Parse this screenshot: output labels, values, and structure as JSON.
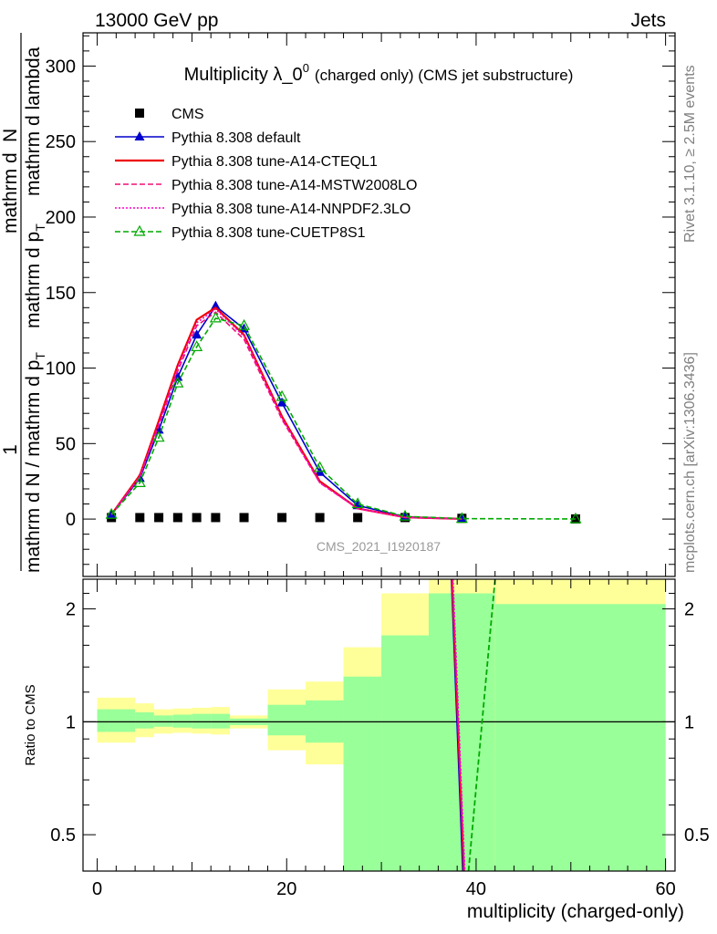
{
  "header": {
    "left": "13000 GeV pp",
    "right": "Jets"
  },
  "side_texts": {
    "rivet": "Rivet 3.1.10, ≥ 2.5M events",
    "mcplots": "mcplots.cern.ch [arXiv:1306.3436]"
  },
  "chart_data": {
    "type": "line",
    "title_main": "Multiplicity λ_0",
    "title_sup": "0",
    "title_note": "(charged only) (CMS jet substructure)",
    "watermark": "CMS_2021_I1920187",
    "xlabel": "multiplicity (charged-only)",
    "ylabel_parts": {
      "one": "1",
      "denominator": "mathrm d N / mathrm d p",
      "denominator_sub": "T",
      "numerator_a": "mathrm d",
      "numerator_b": "N",
      "numerator_c": "mathrm d p",
      "numerator_c_sub": "T",
      "numerator_d": "mathrm d lambda"
    },
    "xlim": [
      -1.5,
      61
    ],
    "ylim": [
      -38,
      322
    ],
    "x_ticks": [
      0,
      20,
      40,
      60
    ],
    "y_ticks": [
      0,
      50,
      100,
      150,
      200,
      250,
      300
    ],
    "legend_position": "top-left",
    "series": [
      {
        "name": "CMS",
        "color": "#000000",
        "style": "marker-square",
        "x": [
          1.5,
          4.5,
          6.5,
          8.5,
          10.5,
          12.5,
          15.5,
          19.5,
          23.5,
          27.5,
          32.5,
          38.5,
          50.5
        ],
        "y": [
          1,
          1,
          1,
          1,
          1,
          1,
          1,
          1,
          1,
          1,
          1,
          0.5,
          0.1
        ]
      },
      {
        "name": "Pythia 8.308 default",
        "color": "#0000cc",
        "style": "solid-triangle",
        "x": [
          1.5,
          4.5,
          6.5,
          8.5,
          10.5,
          12.5,
          15.5,
          19.5,
          23.5,
          27.5,
          32.5,
          38.5
        ],
        "y": [
          3,
          27,
          59,
          94,
          122,
          141,
          126,
          77,
          31,
          9,
          1.5,
          0.2
        ]
      },
      {
        "name": "Pythia 8.308 tune-A14-CTEQL1",
        "color": "#ee0000",
        "style": "solid",
        "x": [
          1.5,
          4.5,
          6.5,
          8.5,
          10.5,
          12.5,
          15.5,
          19.5,
          23.5,
          27.5,
          32.5,
          38.5
        ],
        "y": [
          3,
          29,
          65,
          102,
          132,
          140,
          122,
          68,
          25,
          7,
          1.2,
          0.1
        ]
      },
      {
        "name": "Pythia 8.308 tune-A14-MSTW2008LO",
        "color": "#ee1177",
        "style": "dashed",
        "x": [
          1.5,
          4.5,
          6.5,
          8.5,
          10.5,
          12.5,
          15.5,
          19.5,
          23.5,
          27.5,
          32.5,
          38.5
        ],
        "y": [
          3,
          28,
          62,
          98,
          128,
          137,
          119,
          66,
          24,
          7,
          1.1,
          0.1
        ]
      },
      {
        "name": "Pythia 8.308 tune-A14-NNPDF2.3LO",
        "color": "#ff00cc",
        "style": "dotted",
        "x": [
          1.5,
          4.5,
          6.5,
          8.5,
          10.5,
          12.5,
          15.5,
          19.5,
          23.5,
          27.5,
          32.5,
          38.5
        ],
        "y": [
          3,
          28,
          63,
          100,
          130,
          139,
          121,
          67,
          24,
          7,
          1.1,
          0.1
        ]
      },
      {
        "name": "Pythia 8.308 tune-CUETP8S1",
        "color": "#00aa00",
        "style": "dashed-open-triangle",
        "x": [
          1.5,
          4.5,
          6.5,
          8.5,
          10.5,
          12.5,
          15.5,
          19.5,
          23.5,
          27.5,
          32.5,
          38.5,
          50.5
        ],
        "y": [
          3,
          24,
          54,
          90,
          114,
          133,
          128,
          81,
          34,
          10,
          1.8,
          0.3,
          0.05
        ]
      }
    ],
    "ratio": {
      "ylabel": "Ratio to CMS",
      "ylim": [
        0.4,
        2.4
      ],
      "y_ticks": [
        0.5,
        1,
        2
      ],
      "reference": 1,
      "band_colors": {
        "inner": "#99ff99",
        "outer": "#ffff99"
      },
      "bins": [
        {
          "x0": 0,
          "x1": 4,
          "inner": [
            0.94,
            1.08
          ],
          "outer": [
            0.88,
            1.16
          ]
        },
        {
          "x0": 4,
          "x1": 6,
          "inner": [
            0.96,
            1.06
          ],
          "outer": [
            0.91,
            1.12
          ]
        },
        {
          "x0": 6,
          "x1": 8,
          "inner": [
            0.97,
            1.04
          ],
          "outer": [
            0.93,
            1.08
          ]
        },
        {
          "x0": 8,
          "x1": 10,
          "inner": [
            0.965,
            1.045
          ],
          "outer": [
            0.935,
            1.085
          ]
        },
        {
          "x0": 10,
          "x1": 12,
          "inner": [
            0.96,
            1.05
          ],
          "outer": [
            0.93,
            1.09
          ]
        },
        {
          "x0": 12,
          "x1": 14,
          "inner": [
            0.96,
            1.05
          ],
          "outer": [
            0.925,
            1.095
          ]
        },
        {
          "x0": 14,
          "x1": 18,
          "inner": [
            0.98,
            1.02
          ],
          "outer": [
            0.96,
            1.04
          ]
        },
        {
          "x0": 18,
          "x1": 22,
          "inner": [
            0.92,
            1.11
          ],
          "outer": [
            0.84,
            1.22
          ]
        },
        {
          "x0": 22,
          "x1": 26,
          "inner": [
            0.88,
            1.14
          ],
          "outer": [
            0.77,
            1.28
          ]
        },
        {
          "x0": 26,
          "x1": 30,
          "inner": [
            0.4,
            1.32
          ],
          "outer": [
            0.47,
            1.58
          ]
        },
        {
          "x0": 30,
          "x1": 35,
          "inner": [
            0.4,
            1.7
          ],
          "outer": [
            0.4,
            2.2
          ]
        },
        {
          "x0": 35,
          "x1": 42,
          "inner": [
            0.4,
            2.2
          ],
          "outer": [
            0.4,
            2.4
          ]
        },
        {
          "x0": 42,
          "x1": 60,
          "inner": [
            0.4,
            2.06
          ],
          "outer": [
            0.4,
            2.4
          ]
        }
      ],
      "mc_lines": [
        {
          "color": "#0000cc",
          "style": "solid",
          "x": [
            37.4,
            38.6
          ],
          "y": [
            2.4,
            0.4
          ]
        },
        {
          "color": "#ee0000",
          "style": "solid",
          "x": [
            37.45,
            38.7
          ],
          "y": [
            2.4,
            0.4
          ]
        },
        {
          "color": "#ee1177",
          "style": "dashed",
          "x": [
            37.5,
            38.75
          ],
          "y": [
            2.4,
            0.4
          ]
        },
        {
          "color": "#ff00cc",
          "style": "dotted",
          "x": [
            37.55,
            38.8
          ],
          "y": [
            2.4,
            0.4
          ]
        },
        {
          "color": "#00aa00",
          "style": "dashed",
          "x": [
            39.2,
            42.0
          ],
          "y": [
            0.4,
            2.4
          ]
        }
      ]
    }
  }
}
